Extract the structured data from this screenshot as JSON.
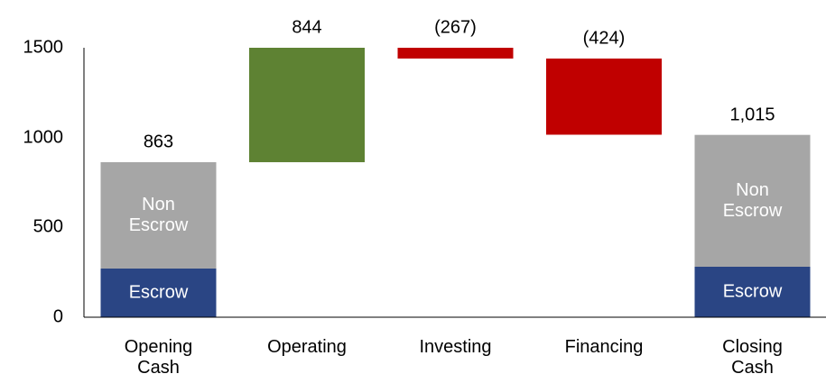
{
  "chart_data": {
    "type": "waterfall",
    "categories": [
      "Opening\nCash",
      "Operating",
      "Investing",
      "Financing",
      "Closing Cash"
    ],
    "measure": [
      "absolute",
      "relative",
      "relative",
      "relative",
      "total"
    ],
    "values": [
      863,
      844,
      -267,
      -424,
      1015
    ],
    "value_labels": [
      "863",
      "844",
      "(267)",
      "(424)",
      "1,015"
    ],
    "increase_color": "#5e8233",
    "decrease_color": "#c00000",
    "segments": [
      {
        "name": "Escrow",
        "color": "#2a4584",
        "values": [
          271,
          null,
          null,
          null,
          281
        ]
      },
      {
        "name": "Non\nEscrow",
        "color": "#a6a6a6",
        "values": [
          592,
          null,
          null,
          null,
          734
        ]
      }
    ],
    "ylim": [
      0,
      1500
    ],
    "yticks": [
      0,
      500,
      1000,
      1500
    ],
    "grid": false
  }
}
